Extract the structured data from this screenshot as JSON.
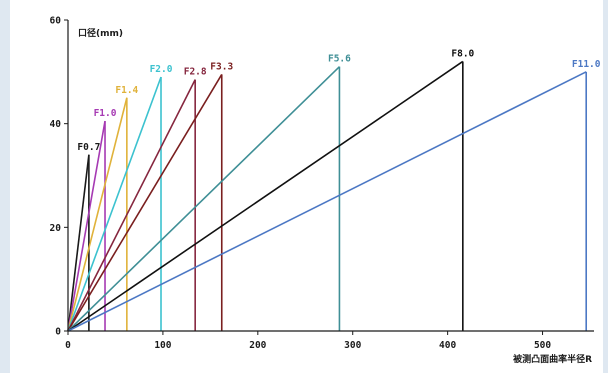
{
  "chart_data": {
    "type": "line",
    "ylabel": "口径(mm)",
    "xlabel": "被测凸面曲率半径R",
    "xlim": [
      0,
      550
    ],
    "ylim": [
      0,
      60
    ],
    "x_ticks": [
      0,
      100,
      200,
      300,
      400,
      500
    ],
    "y_ticks": [
      0,
      20,
      40,
      60
    ],
    "grid": false,
    "legend": "none",
    "series": [
      {
        "name": "F0.7",
        "color": "#1a1a1a",
        "points": [
          [
            0,
            0
          ],
          [
            22,
            34
          ]
        ],
        "drop_x": 22
      },
      {
        "name": "F1.0",
        "color": "#a63ab3",
        "points": [
          [
            0,
            0
          ],
          [
            39,
            40.5
          ]
        ],
        "drop_x": 39
      },
      {
        "name": "F1.4",
        "color": "#e0b23a",
        "points": [
          [
            0,
            0
          ],
          [
            62,
            45
          ]
        ],
        "drop_x": 62
      },
      {
        "name": "F2.0",
        "color": "#3cc2cf",
        "points": [
          [
            0,
            0
          ],
          [
            98,
            49
          ]
        ],
        "drop_x": 98
      },
      {
        "name": "F2.8",
        "color": "#86273f",
        "points": [
          [
            0,
            0
          ],
          [
            134,
            48.5
          ]
        ],
        "drop_x": 134
      },
      {
        "name": "F3.3",
        "color": "#7a1f1f",
        "points": [
          [
            0,
            0
          ],
          [
            162,
            49.5
          ]
        ],
        "drop_x": 162
      },
      {
        "name": "F5.6",
        "color": "#3f8f96",
        "points": [
          [
            0,
            0
          ],
          [
            286,
            51
          ]
        ],
        "drop_x": 286
      },
      {
        "name": "F8.0",
        "color": "#111111",
        "points": [
          [
            0,
            0
          ],
          [
            416,
            52
          ]
        ],
        "drop_x": 416
      },
      {
        "name": "F11.0",
        "color": "#4c78c4",
        "points": [
          [
            0,
            0
          ],
          [
            546,
            50
          ]
        ],
        "drop_x": 546
      }
    ]
  }
}
